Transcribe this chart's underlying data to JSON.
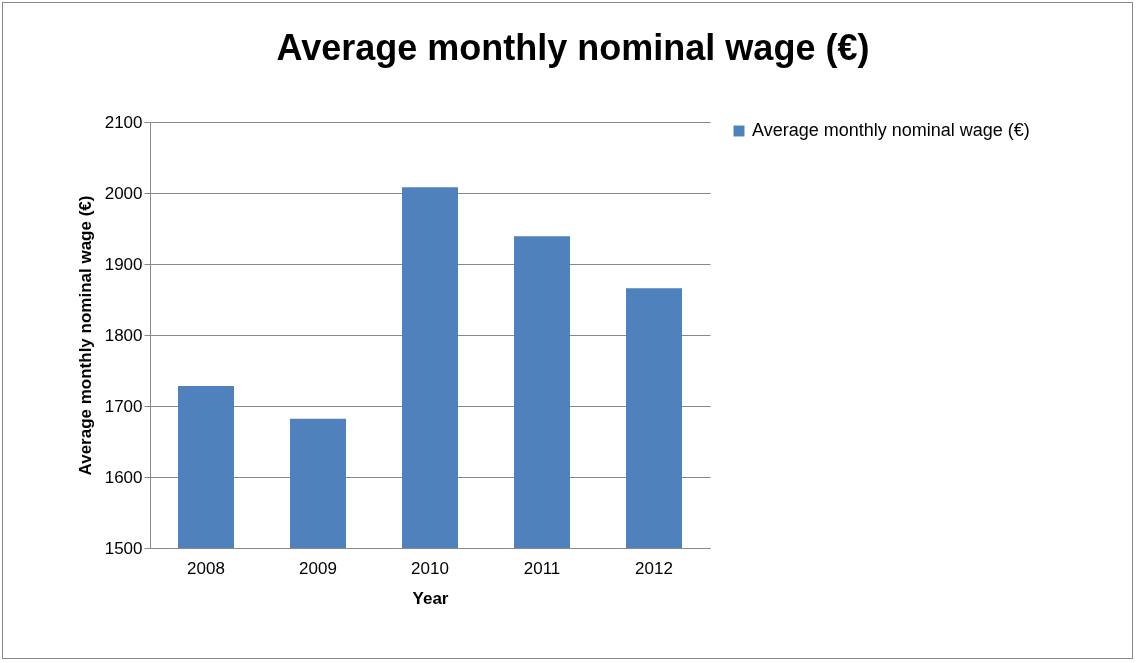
{
  "chart_data": {
    "type": "bar",
    "title": "Average monthly nominal wage (€)",
    "xlabel": "Year",
    "ylabel": "Average monthly nominal wage (€)",
    "categories": [
      "2008",
      "2009",
      "2010",
      "2011",
      "2012"
    ],
    "series": [
      {
        "name": "Average monthly nominal wage (€)",
        "color": "#4f81bd",
        "values": [
          1728,
          1682,
          2008,
          1939,
          1866
        ]
      }
    ],
    "ylim": [
      1500,
      2100
    ],
    "yticks": [
      1500,
      1600,
      1700,
      1800,
      1900,
      2000,
      2100
    ],
    "grid": "y",
    "legend": "right"
  }
}
